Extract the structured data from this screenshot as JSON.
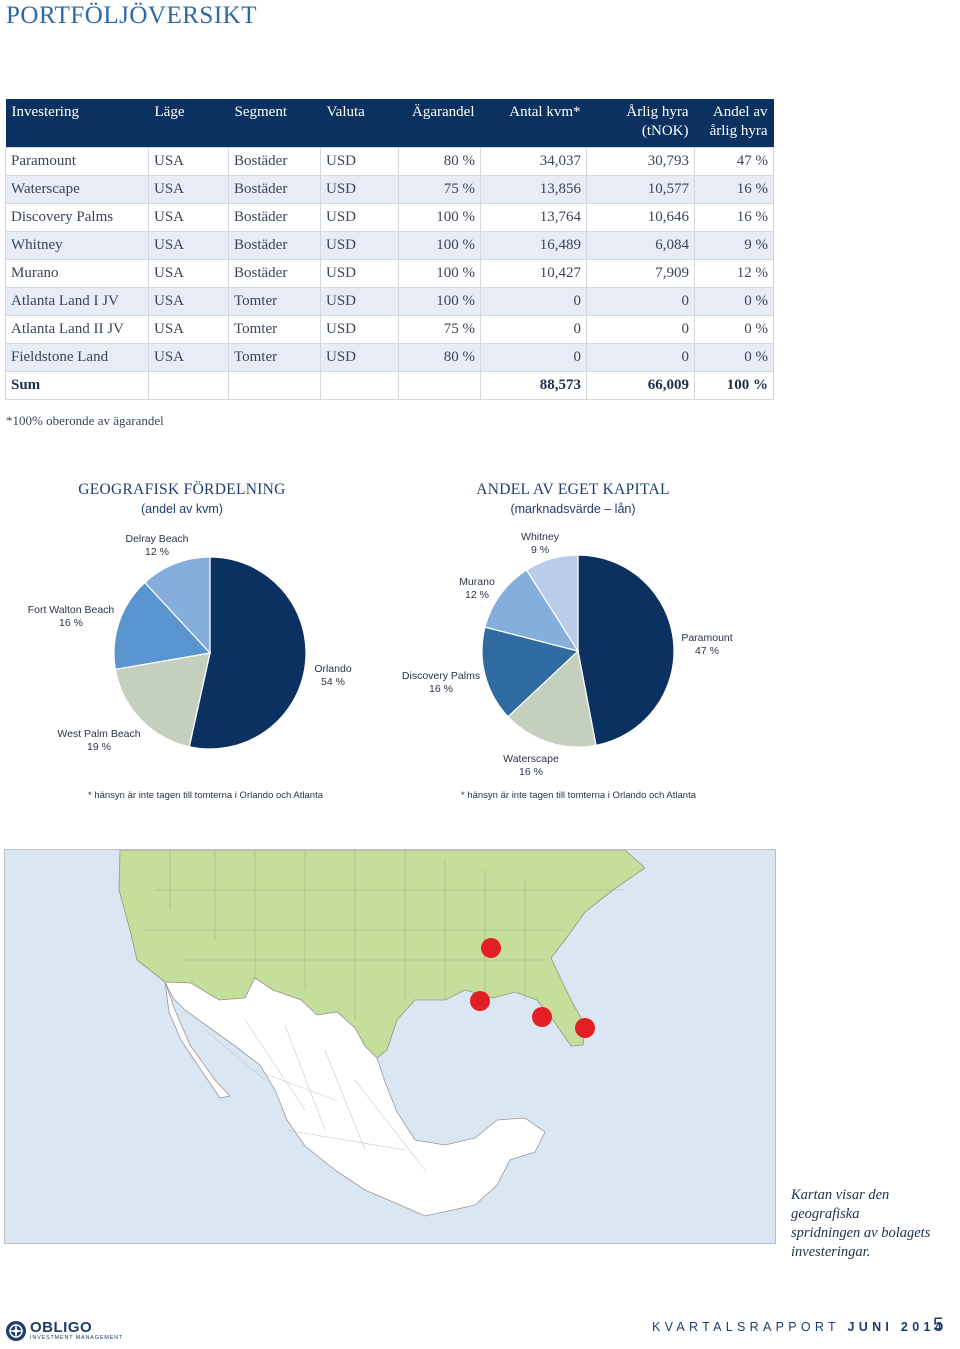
{
  "page_title": "PORTFÖLJÖVERSIKT",
  "table": {
    "headers": [
      "Investering",
      "Läge",
      "Segment",
      "Valuta",
      "Ägarandel",
      "Antal kvm*",
      "Årlig hyra (tNOK)",
      "Andel av årlig hyra"
    ],
    "rows": [
      [
        "Paramount",
        "USA",
        "Bostäder",
        "USD",
        "80 %",
        "34,037",
        "30,793",
        "47 %"
      ],
      [
        "Waterscape",
        "USA",
        "Bostäder",
        "USD",
        "75 %",
        "13,856",
        "10,577",
        "16 %"
      ],
      [
        "Discovery Palms",
        "USA",
        "Bostäder",
        "USD",
        "100 %",
        "13,764",
        "10,646",
        "16 %"
      ],
      [
        "Whitney",
        "USA",
        "Bostäder",
        "USD",
        "100 %",
        "16,489",
        "6,084",
        "9 %"
      ],
      [
        "Murano",
        "USA",
        "Bostäder",
        "USD",
        "100 %",
        "10,427",
        "7,909",
        "12 %"
      ],
      [
        "Atlanta Land I JV",
        "USA",
        "Tomter",
        "USD",
        "100 %",
        "0",
        "0",
        "0 %"
      ],
      [
        "Atlanta Land II JV",
        "USA",
        "Tomter",
        "USD",
        "75 %",
        "0",
        "0",
        "0 %"
      ],
      [
        "Fieldstone Land",
        "USA",
        "Tomter",
        "USD",
        "80 %",
        "0",
        "0",
        "0 %"
      ]
    ],
    "sum": {
      "label": "Sum",
      "kvm": "88,573",
      "hyra": "66,009",
      "andel": "100 %"
    }
  },
  "table_footnote": "*100% oberonde av ägarandel",
  "chart_data": [
    {
      "type": "pie",
      "title": "GEOGRAFISK FÖRDELNING",
      "subtitle": "(andel av kvm)",
      "slices": [
        {
          "label": "Orlando",
          "value": 54,
          "text": "54 %",
          "color": "#0b3160"
        },
        {
          "label": "West Palm Beach",
          "value": 19,
          "text": "19 %",
          "color": "#c5cfbe"
        },
        {
          "label": "Fort Walton Beach",
          "value": 16,
          "text": "16 %",
          "color": "#5b95cf"
        },
        {
          "label": "Delray Beach",
          "value": 12,
          "text": "12 %",
          "color": "#85aedc"
        }
      ],
      "note": "* hänsyn är inte tagen till tomterna i Orlando och Atlanta"
    },
    {
      "type": "pie",
      "title": "ANDEL AV EGET KAPITAL",
      "subtitle": "(marknadsvärde – lån)",
      "slices": [
        {
          "label": "Paramount",
          "value": 47,
          "text": "47 %",
          "color": "#0b3160"
        },
        {
          "label": "Waterscape",
          "value": 16,
          "text": "16 %",
          "color": "#c5cfbe"
        },
        {
          "label": "Discovery Palms",
          "value": 16,
          "text": "16 %",
          "color": "#2f6aa0"
        },
        {
          "label": "Murano",
          "value": 12,
          "text": "12 %",
          "color": "#85aedc"
        },
        {
          "label": "Whitney",
          "value": 9,
          "text": "9 %",
          "color": "#b9cde9"
        }
      ],
      "note": "* hänsyn är inte tagen till tomterna i Orlando och Atlanta"
    }
  ],
  "map": {
    "colors": {
      "sea": "#dbe6f3",
      "us": "#c6de9c",
      "mexico": "#ffffff",
      "marker": "#e31f26"
    }
  },
  "map_caption": [
    "Kartan visar den geografiska",
    "spridningen av bolagets",
    "investeringar."
  ],
  "footer": {
    "logo_name": "OBLIGO",
    "logo_sub": "INVESTMENT MANAGEMENT",
    "report_label": "KVARTALSRAPPORT",
    "report_period": "JUNI 2014",
    "page_number": "5"
  }
}
